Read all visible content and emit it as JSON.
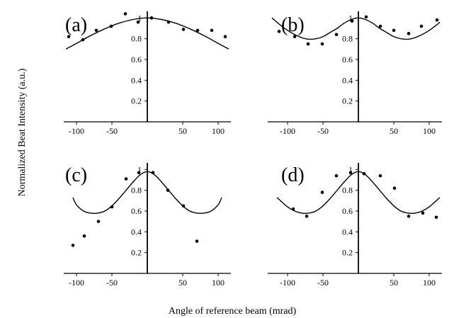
{
  "figure": {
    "ylabel": "Normalized Beat Intensity (a.u.)",
    "xlabel": "Angle of reference beam (mrad)"
  },
  "chart_data": [
    {
      "type": "scatter",
      "panel_label": "(a)",
      "xlim": [
        -118,
        118
      ],
      "ylim": [
        0,
        1.05
      ],
      "x_ticks": [
        -100,
        -50,
        50,
        100
      ],
      "x_tick_labels": [
        "-100",
        "-50",
        "50",
        "100"
      ],
      "y_ticks": [
        0.2,
        0.4,
        0.6,
        0.8,
        1
      ],
      "y_tick_labels": [
        "0.2",
        "0.4",
        "0.6",
        "0.8",
        "1"
      ],
      "series": [
        {
          "kind": "points",
          "x": [
            -111,
            -91,
            -72,
            -51,
            -31,
            -13,
            6,
            30,
            51,
            71,
            91,
            110
          ],
          "y": [
            0.82,
            0.79,
            0.88,
            0.92,
            1.04,
            0.96,
            1.0,
            0.96,
            0.89,
            0.88,
            0.88,
            0.82
          ]
        },
        {
          "kind": "curve",
          "x": [
            -115,
            -100,
            -80,
            -60,
            -40,
            -20,
            0,
            20,
            40,
            60,
            80,
            100,
            115
          ],
          "y": [
            0.7,
            0.755,
            0.83,
            0.895,
            0.95,
            0.985,
            1.0,
            0.985,
            0.95,
            0.895,
            0.83,
            0.755,
            0.7
          ]
        }
      ]
    },
    {
      "type": "scatter",
      "panel_label": "(b)",
      "xlim": [
        -128,
        118
      ],
      "ylim": [
        0,
        1.05
      ],
      "x_ticks": [
        -100,
        -50,
        50,
        100
      ],
      "x_tick_labels": [
        "-100",
        "-50",
        "50",
        "100"
      ],
      "y_ticks": [
        0.2,
        0.4,
        0.6,
        0.8,
        1
      ],
      "y_tick_labels": [
        "0.2",
        "0.4",
        "0.6",
        "0.8",
        "1"
      ],
      "series": [
        {
          "kind": "points",
          "x": [
            -112,
            -90,
            -71,
            -51,
            -31,
            -9,
            11,
            31,
            50,
            71,
            89,
            111
          ],
          "y": [
            0.87,
            0.82,
            0.75,
            0.75,
            0.84,
            0.97,
            1.01,
            0.92,
            0.88,
            0.85,
            0.92,
            0.98
          ]
        },
        {
          "kind": "curve",
          "x": [
            -122,
            -110,
            -100,
            -90,
            -80,
            -70,
            -60,
            -50,
            -40,
            -30,
            -20,
            -10,
            0,
            10,
            20,
            30,
            40,
            50,
            60,
            70,
            80,
            90,
            100,
            110,
            115
          ],
          "y": [
            1.0,
            0.93,
            0.88,
            0.84,
            0.81,
            0.795,
            0.8,
            0.82,
            0.86,
            0.9,
            0.95,
            0.985,
            1.0,
            0.985,
            0.95,
            0.9,
            0.86,
            0.82,
            0.8,
            0.795,
            0.81,
            0.84,
            0.88,
            0.93,
            0.96
          ]
        }
      ]
    },
    {
      "type": "scatter",
      "panel_label": "(c)",
      "xlim": [
        -118,
        118
      ],
      "ylim": [
        0,
        1.05
      ],
      "x_ticks": [
        -100,
        -50,
        50,
        100
      ],
      "x_tick_labels": [
        "-100",
        "-50",
        "50",
        "100"
      ],
      "y_ticks": [
        0.2,
        0.4,
        0.6,
        0.8,
        1
      ],
      "y_tick_labels": [
        "0.2",
        "0.4",
        "0.6",
        "0.8",
        "1"
      ],
      "series": [
        {
          "kind": "points",
          "x": [
            -105,
            -89,
            -69,
            -50,
            -30,
            -12,
            8,
            29,
            51,
            70
          ],
          "y": [
            0.27,
            0.36,
            0.5,
            0.64,
            0.91,
            0.97,
            0.97,
            0.8,
            0.65,
            0.31
          ]
        },
        {
          "kind": "curve",
          "x": [
            -105,
            -100,
            -90,
            -80,
            -70,
            -60,
            -50,
            -40,
            -30,
            -20,
            -10,
            0,
            10,
            20,
            30,
            40,
            50,
            60,
            70,
            80,
            90,
            100,
            105
          ],
          "y": [
            0.73,
            0.66,
            0.6,
            0.58,
            0.58,
            0.6,
            0.65,
            0.72,
            0.8,
            0.88,
            0.95,
            0.98,
            0.95,
            0.88,
            0.8,
            0.72,
            0.65,
            0.6,
            0.58,
            0.58,
            0.6,
            0.66,
            0.73
          ]
        }
      ]
    },
    {
      "type": "scatter",
      "panel_label": "(d)",
      "xlim": [
        -128,
        118
      ],
      "ylim": [
        0,
        1.05
      ],
      "x_ticks": [
        -100,
        -50,
        50,
        100
      ],
      "x_tick_labels": [
        "-100",
        "-50",
        "50",
        "100"
      ],
      "y_ticks": [
        0.2,
        0.4,
        0.6,
        0.8,
        1
      ],
      "y_tick_labels": [
        "0.2",
        "0.4",
        "0.6",
        "0.8",
        "1"
      ],
      "series": [
        {
          "kind": "points",
          "x": [
            -92,
            -73,
            -51,
            -31,
            -11,
            8,
            31,
            51,
            71,
            91,
            110
          ],
          "y": [
            0.62,
            0.55,
            0.78,
            0.94,
            0.97,
            0.96,
            0.94,
            0.82,
            0.55,
            0.58,
            0.54
          ]
        },
        {
          "kind": "curve",
          "x": [
            -115,
            -110,
            -100,
            -90,
            -80,
            -70,
            -60,
            -50,
            -40,
            -30,
            -20,
            -10,
            0,
            10,
            20,
            30,
            40,
            50,
            60,
            70,
            80,
            90,
            100,
            110,
            115
          ],
          "y": [
            0.73,
            0.7,
            0.64,
            0.6,
            0.58,
            0.58,
            0.6,
            0.65,
            0.72,
            0.8,
            0.88,
            0.95,
            0.98,
            0.95,
            0.88,
            0.8,
            0.72,
            0.65,
            0.6,
            0.58,
            0.58,
            0.6,
            0.64,
            0.7,
            0.73
          ]
        }
      ]
    }
  ]
}
